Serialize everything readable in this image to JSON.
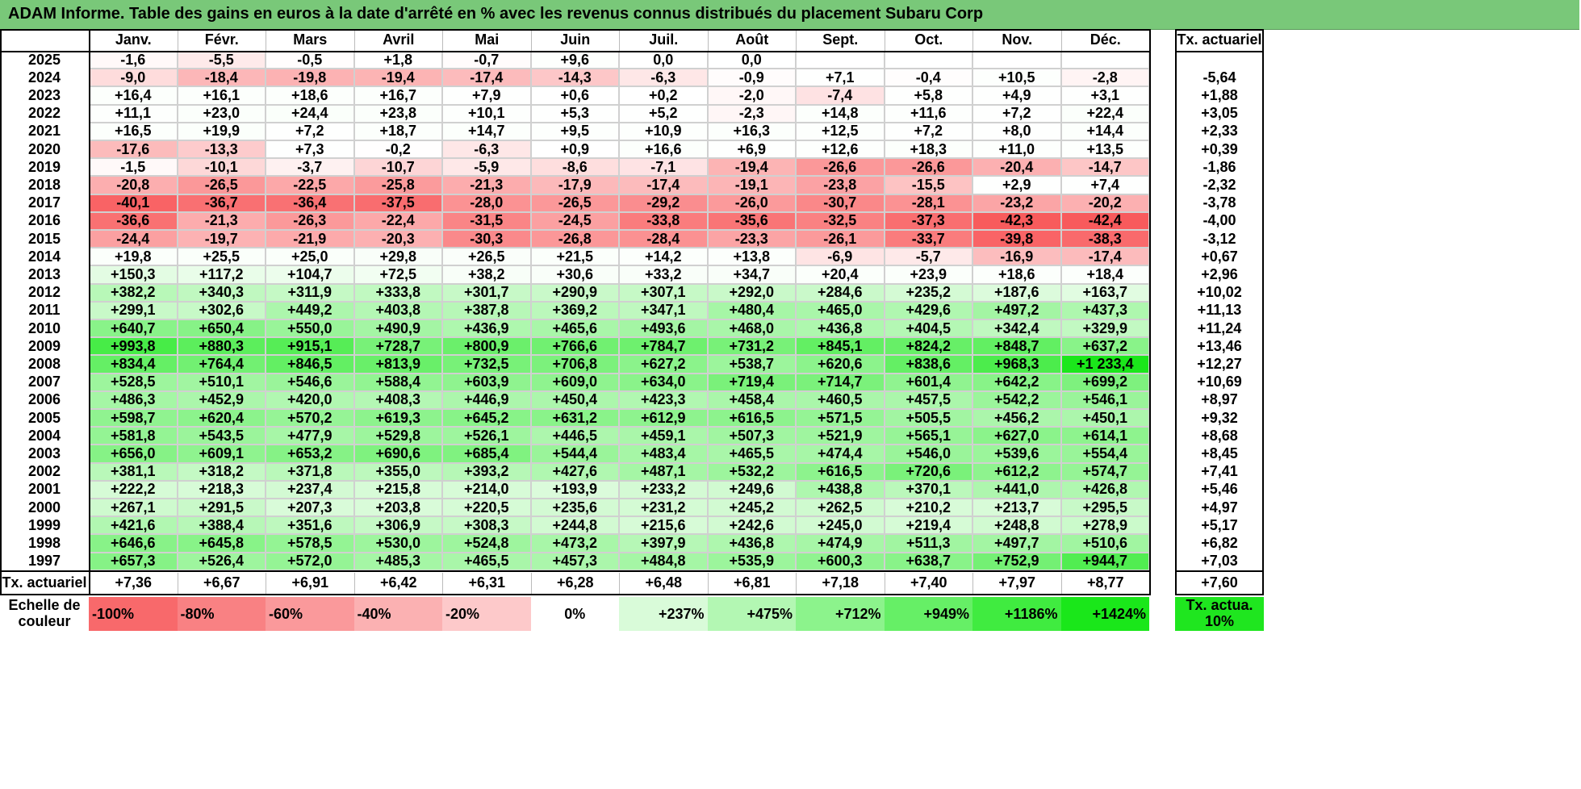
{
  "title": "ADAM Informe. Table des gains en euros à la date d'arrêté en % avec les revenus connus distribués du placement Subaru Corp",
  "chart_data": {
    "type": "table",
    "months": [
      "Janv.",
      "Févr.",
      "Mars",
      "Avril",
      "Mai",
      "Juin",
      "Juil.",
      "Août",
      "Sept.",
      "Oct.",
      "Nov.",
      "Déc."
    ],
    "rate_header": "Tx. actuariel",
    "rows": [
      {
        "year": "2025",
        "values": [
          "-1,6",
          "-5,5",
          "-0,5",
          "+1,8",
          "-0,7",
          "+9,6",
          "0,0",
          "0,0",
          "",
          "",
          "",
          ""
        ],
        "rate": ""
      },
      {
        "year": "2024",
        "values": [
          "-9,0",
          "-18,4",
          "-19,8",
          "-19,4",
          "-17,4",
          "-14,3",
          "-6,3",
          "-0,9",
          "+7,1",
          "-0,4",
          "+10,5",
          "-2,8"
        ],
        "rate": "-5,64"
      },
      {
        "year": "2023",
        "values": [
          "+16,4",
          "+16,1",
          "+18,6",
          "+16,7",
          "+7,9",
          "+0,6",
          "+0,2",
          "-2,0",
          "-7,4",
          "+5,8",
          "+4,9",
          "+3,1"
        ],
        "rate": "+1,88"
      },
      {
        "year": "2022",
        "values": [
          "+11,1",
          "+23,0",
          "+24,4",
          "+23,8",
          "+10,1",
          "+5,3",
          "+5,2",
          "-2,3",
          "+14,8",
          "+11,6",
          "+7,2",
          "+22,4"
        ],
        "rate": "+3,05"
      },
      {
        "year": "2021",
        "values": [
          "+16,5",
          "+19,9",
          "+7,2",
          "+18,7",
          "+14,7",
          "+9,5",
          "+10,9",
          "+16,3",
          "+12,5",
          "+7,2",
          "+8,0",
          "+14,4"
        ],
        "rate": "+2,33"
      },
      {
        "year": "2020",
        "values": [
          "-17,6",
          "-13,3",
          "+7,3",
          "-0,2",
          "-6,3",
          "+0,9",
          "+16,6",
          "+6,9",
          "+12,6",
          "+18,3",
          "+11,0",
          "+13,5"
        ],
        "rate": "+0,39"
      },
      {
        "year": "2019",
        "values": [
          "-1,5",
          "-10,1",
          "-3,7",
          "-10,7",
          "-5,9",
          "-8,6",
          "-7,1",
          "-19,4",
          "-26,6",
          "-26,6",
          "-20,4",
          "-14,7"
        ],
        "rate": "-1,86"
      },
      {
        "year": "2018",
        "values": [
          "-20,8",
          "-26,5",
          "-22,5",
          "-25,8",
          "-21,3",
          "-17,9",
          "-17,4",
          "-19,1",
          "-23,8",
          "-15,5",
          "+2,9",
          "+7,4"
        ],
        "rate": "-2,32"
      },
      {
        "year": "2017",
        "values": [
          "-40,1",
          "-36,7",
          "-36,4",
          "-37,5",
          "-28,0",
          "-26,5",
          "-29,2",
          "-26,0",
          "-30,7",
          "-28,1",
          "-23,2",
          "-20,2"
        ],
        "rate": "-3,78"
      },
      {
        "year": "2016",
        "values": [
          "-36,6",
          "-21,3",
          "-26,3",
          "-22,4",
          "-31,5",
          "-24,5",
          "-33,8",
          "-35,6",
          "-32,5",
          "-37,3",
          "-42,3",
          "-42,4"
        ],
        "rate": "-4,00"
      },
      {
        "year": "2015",
        "values": [
          "-24,4",
          "-19,7",
          "-21,9",
          "-20,3",
          "-30,3",
          "-26,8",
          "-28,4",
          "-23,3",
          "-26,1",
          "-33,7",
          "-39,8",
          "-38,3"
        ],
        "rate": "-3,12"
      },
      {
        "year": "2014",
        "values": [
          "+19,8",
          "+25,5",
          "+25,0",
          "+29,8",
          "+26,5",
          "+21,5",
          "+14,2",
          "+13,8",
          "-6,9",
          "-5,7",
          "-16,9",
          "-17,4"
        ],
        "rate": "+0,67"
      },
      {
        "year": "2013",
        "values": [
          "+150,3",
          "+117,2",
          "+104,7",
          "+72,5",
          "+38,2",
          "+30,6",
          "+33,2",
          "+34,7",
          "+20,4",
          "+23,9",
          "+18,6",
          "+18,4"
        ],
        "rate": "+2,96"
      },
      {
        "year": "2012",
        "values": [
          "+382,2",
          "+340,3",
          "+311,9",
          "+333,8",
          "+301,7",
          "+290,9",
          "+307,1",
          "+292,0",
          "+284,6",
          "+235,2",
          "+187,6",
          "+163,7"
        ],
        "rate": "+10,02"
      },
      {
        "year": "2011",
        "values": [
          "+299,1",
          "+302,6",
          "+449,2",
          "+403,8",
          "+387,8",
          "+369,2",
          "+347,1",
          "+480,4",
          "+465,0",
          "+429,6",
          "+497,2",
          "+437,3"
        ],
        "rate": "+11,13"
      },
      {
        "year": "2010",
        "values": [
          "+640,7",
          "+650,4",
          "+550,0",
          "+490,9",
          "+436,9",
          "+465,6",
          "+493,6",
          "+468,0",
          "+436,8",
          "+404,5",
          "+342,4",
          "+329,9"
        ],
        "rate": "+11,24"
      },
      {
        "year": "2009",
        "values": [
          "+993,8",
          "+880,3",
          "+915,1",
          "+728,7",
          "+800,9",
          "+766,6",
          "+784,7",
          "+731,2",
          "+845,1",
          "+824,2",
          "+848,7",
          "+637,2"
        ],
        "rate": "+13,46"
      },
      {
        "year": "2008",
        "values": [
          "+834,4",
          "+764,4",
          "+846,5",
          "+813,9",
          "+732,5",
          "+706,8",
          "+627,2",
          "+538,7",
          "+620,6",
          "+838,6",
          "+968,3",
          "+1 233,4"
        ],
        "rate": "+12,27"
      },
      {
        "year": "2007",
        "values": [
          "+528,5",
          "+510,1",
          "+546,6",
          "+588,4",
          "+603,9",
          "+609,0",
          "+634,0",
          "+719,4",
          "+714,7",
          "+601,4",
          "+642,2",
          "+699,2"
        ],
        "rate": "+10,69"
      },
      {
        "year": "2006",
        "values": [
          "+486,3",
          "+452,9",
          "+420,0",
          "+408,3",
          "+446,9",
          "+450,4",
          "+423,3",
          "+458,4",
          "+460,5",
          "+457,5",
          "+542,2",
          "+546,1"
        ],
        "rate": "+8,97"
      },
      {
        "year": "2005",
        "values": [
          "+598,7",
          "+620,4",
          "+570,2",
          "+619,3",
          "+645,2",
          "+631,2",
          "+612,9",
          "+616,5",
          "+571,5",
          "+505,5",
          "+456,2",
          "+450,1"
        ],
        "rate": "+9,32"
      },
      {
        "year": "2004",
        "values": [
          "+581,8",
          "+543,5",
          "+477,9",
          "+529,8",
          "+526,1",
          "+446,5",
          "+459,1",
          "+507,3",
          "+521,9",
          "+565,1",
          "+627,0",
          "+614,1"
        ],
        "rate": "+8,68"
      },
      {
        "year": "2003",
        "values": [
          "+656,0",
          "+609,1",
          "+653,2",
          "+690,6",
          "+685,4",
          "+544,4",
          "+483,4",
          "+465,5",
          "+474,4",
          "+546,0",
          "+539,6",
          "+554,4"
        ],
        "rate": "+8,45"
      },
      {
        "year": "2002",
        "values": [
          "+381,1",
          "+318,2",
          "+371,8",
          "+355,0",
          "+393,2",
          "+427,6",
          "+487,1",
          "+532,2",
          "+616,5",
          "+720,6",
          "+612,2",
          "+574,7"
        ],
        "rate": "+7,41"
      },
      {
        "year": "2001",
        "values": [
          "+222,2",
          "+218,3",
          "+237,4",
          "+215,8",
          "+214,0",
          "+193,9",
          "+233,2",
          "+249,6",
          "+438,8",
          "+370,1",
          "+441,0",
          "+426,8"
        ],
        "rate": "+5,46"
      },
      {
        "year": "2000",
        "values": [
          "+267,1",
          "+291,5",
          "+207,3",
          "+203,8",
          "+220,5",
          "+235,6",
          "+231,2",
          "+245,2",
          "+262,5",
          "+210,2",
          "+213,7",
          "+295,5"
        ],
        "rate": "+4,97"
      },
      {
        "year": "1999",
        "values": [
          "+421,6",
          "+388,4",
          "+351,6",
          "+306,9",
          "+308,3",
          "+244,8",
          "+215,6",
          "+242,6",
          "+245,0",
          "+219,4",
          "+248,8",
          "+278,9"
        ],
        "rate": "+5,17"
      },
      {
        "year": "1998",
        "values": [
          "+646,6",
          "+645,8",
          "+578,5",
          "+530,0",
          "+524,8",
          "+473,2",
          "+397,9",
          "+436,8",
          "+474,9",
          "+511,3",
          "+497,7",
          "+510,6"
        ],
        "rate": "+6,82"
      },
      {
        "year": "1997",
        "values": [
          "+657,3",
          "+526,4",
          "+572,0",
          "+485,3",
          "+465,5",
          "+457,3",
          "+484,8",
          "+535,9",
          "+600,3",
          "+638,7",
          "+752,9",
          "+944,7"
        ],
        "rate": "+7,03"
      }
    ],
    "total_row": {
      "label": "Tx. actuariel",
      "values": [
        "+7,36",
        "+6,67",
        "+6,91",
        "+6,42",
        "+6,31",
        "+6,28",
        "+6,48",
        "+6,81",
        "+7,18",
        "+7,40",
        "+7,97",
        "+8,77"
      ],
      "rate": "+7,60"
    },
    "scale": {
      "label": "Echelle de couleur",
      "steps": [
        {
          "text": "-100%",
          "color": "#f8696b"
        },
        {
          "text": "-80%",
          "color": "#f98183"
        },
        {
          "text": "-60%",
          "color": "#fa999b"
        },
        {
          "text": "-40%",
          "color": "#fbb1b2"
        },
        {
          "text": "-20%",
          "color": "#fdc9ca"
        },
        {
          "text": "0%",
          "color": "#ffffff"
        },
        {
          "text": "+237%",
          "color": "#d9fbd9"
        },
        {
          "text": "+475%",
          "color": "#b3f7b3"
        },
        {
          "text": "+712%",
          "color": "#8cf38c"
        },
        {
          "text": "+949%",
          "color": "#66ef66"
        },
        {
          "text": "+1186%",
          "color": "#40eb40"
        },
        {
          "text": "+1424%",
          "color": "#1ae71a"
        }
      ],
      "rate_box": "Tx. actua. 10%",
      "rate_box_color": "#1fe61f"
    }
  }
}
